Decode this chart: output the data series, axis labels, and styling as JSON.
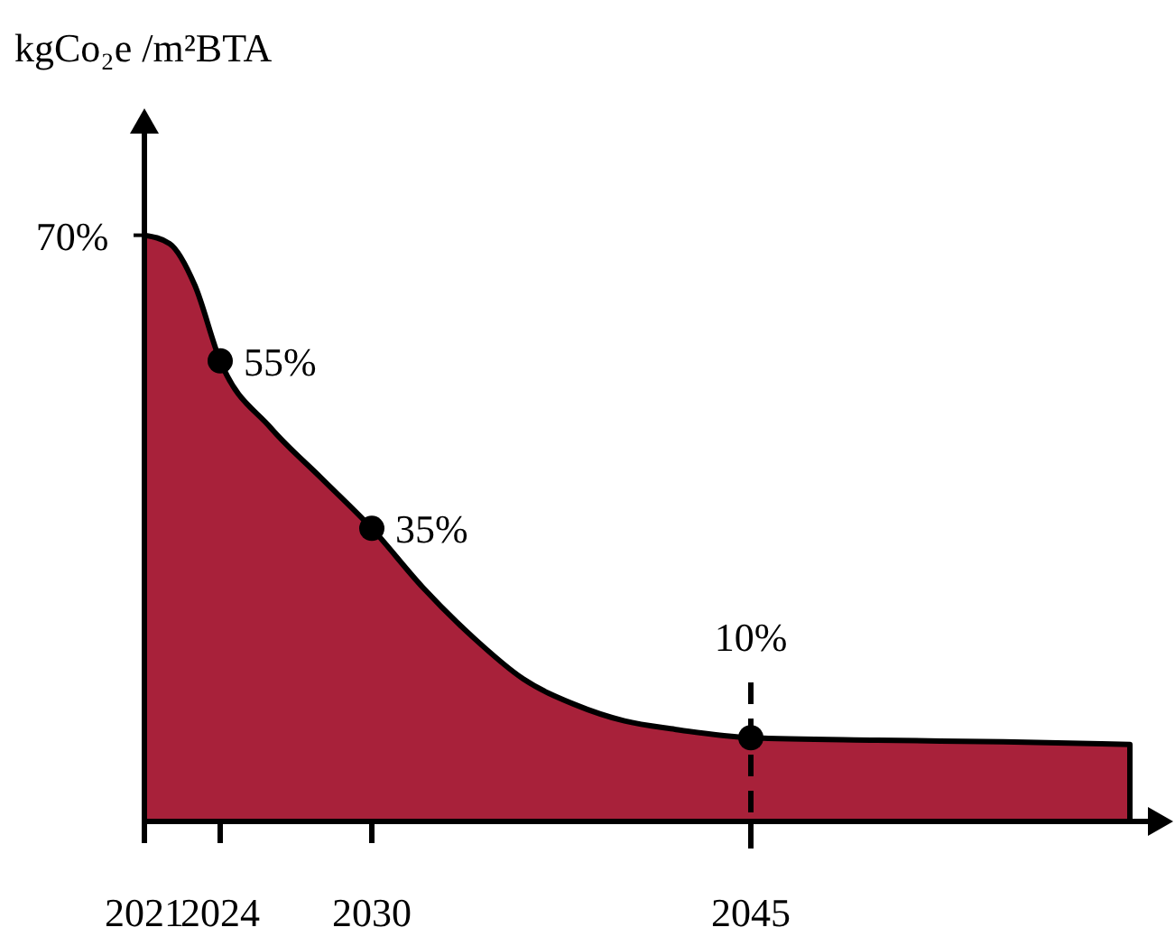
{
  "chart_data": {
    "type": "area",
    "ylabel": "kgCo₂e /m²BTA",
    "xlim": [
      2021,
      2061
    ],
    "xticks": [
      2021,
      2024,
      2030,
      2045
    ],
    "ylim": [
      0,
      83
    ],
    "yticks": [
      {
        "value": 70,
        "label": "70%"
      }
    ],
    "series": [
      {
        "color": "#a8213a",
        "x": [
          2021,
          2022,
          2023,
          2024,
          2026,
          2028,
          2030,
          2032,
          2034,
          2036,
          2038,
          2040,
          2042,
          2045,
          2050,
          2055,
          2060
        ],
        "values": [
          70,
          69,
          64,
          55,
          47,
          41,
          35,
          28,
          22,
          17,
          14,
          12,
          11,
          10,
          9.7,
          9.5,
          9.2
        ]
      },
      {
        "type": "scatter",
        "color": "#000000",
        "marker": "circle",
        "x": [
          2024,
          2030,
          2045
        ],
        "values": [
          55,
          35,
          10
        ],
        "value_labels": [
          "55%",
          "35%",
          "10%"
        ]
      }
    ],
    "ref_lines": [
      {
        "axis": "x",
        "value": 2045,
        "line_style": "dashed",
        "color": "#000000"
      }
    ]
  }
}
